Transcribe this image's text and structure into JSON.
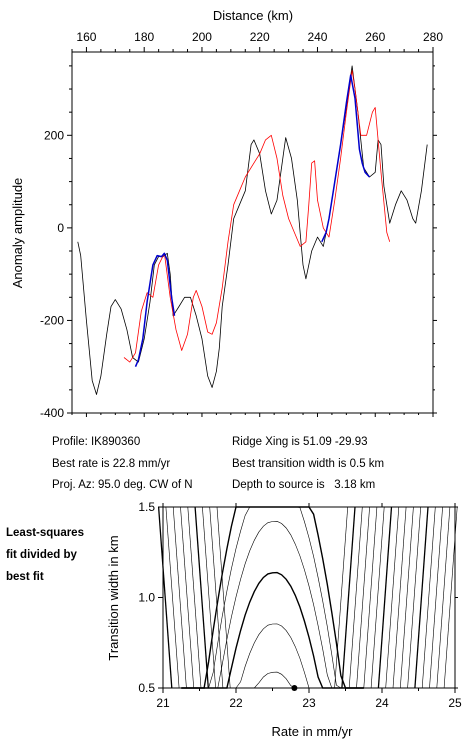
{
  "info": {
    "profile": "Profile: IK890360",
    "best_rate": "Best rate is 22.8 mm/yr",
    "proj_az": "Proj. Az: 95.0 deg. CW of N",
    "ridge_xing": "Ridge Xing is 51.09 -29.93",
    "best_width": "Best transition width is 0.5 km",
    "depth": "Depth to source is   3.18 km"
  },
  "side_label": [
    "Least-squares",
    "fit divided by",
    "best fit"
  ],
  "colors": {
    "observed": "#000000",
    "model": "#ff0000",
    "fit_window": "#0000cc"
  },
  "chart_data": [
    {
      "type": "line",
      "xlabel": "Distance (km)",
      "ylabel": "Anomaly amplitude",
      "xlim": [
        155,
        280
      ],
      "ylim": [
        -400,
        380
      ],
      "xticks": [
        160,
        180,
        200,
        220,
        240,
        260,
        280
      ],
      "yticks": [
        -400,
        -200,
        0,
        200
      ],
      "x_axis_position": "top",
      "series": [
        {
          "color": "black",
          "points": [
            [
              157,
              -30
            ],
            [
              158,
              -60
            ],
            [
              160,
              -200
            ],
            [
              162,
              -330
            ],
            [
              163.5,
              -360
            ],
            [
              165,
              -320
            ],
            [
              167,
              -230
            ],
            [
              168.5,
              -170
            ],
            [
              170,
              -155
            ],
            [
              172,
              -175
            ],
            [
              174,
              -220
            ],
            [
              176,
              -280
            ],
            [
              178,
              -290
            ],
            [
              180,
              -240
            ],
            [
              182,
              -160
            ],
            [
              183.5,
              -80
            ],
            [
              185,
              -62
            ],
            [
              186.5,
              -62
            ],
            [
              188,
              -55
            ],
            [
              189,
              -100
            ],
            [
              190,
              -190
            ],
            [
              192,
              -170
            ],
            [
              194,
              -150
            ],
            [
              196,
              -150
            ],
            [
              198,
              -190
            ],
            [
              200,
              -240
            ],
            [
              202,
              -320
            ],
            [
              203.5,
              -345
            ],
            [
              205,
              -310
            ],
            [
              206,
              -260
            ],
            [
              207,
              -170
            ],
            [
              209,
              -80
            ],
            [
              211,
              20
            ],
            [
              213,
              50
            ],
            [
              215,
              80
            ],
            [
              217,
              180
            ],
            [
              218,
              190
            ],
            [
              220,
              160
            ],
            [
              222,
              80
            ],
            [
              224,
              30
            ],
            [
              226,
              60
            ],
            [
              228,
              150
            ],
            [
              229,
              195
            ],
            [
              231,
              150
            ],
            [
              233,
              60
            ],
            [
              235,
              -80
            ],
            [
              236,
              -110
            ],
            [
              238,
              -50
            ],
            [
              240,
              -20
            ],
            [
              242,
              -40
            ],
            [
              244,
              20
            ],
            [
              246,
              100
            ],
            [
              248,
              180
            ],
            [
              250,
              260
            ],
            [
              252,
              350
            ],
            [
              254,
              250
            ],
            [
              256,
              130
            ],
            [
              258,
              110
            ],
            [
              260,
              120
            ],
            [
              261,
              190
            ],
            [
              262,
              180
            ],
            [
              263,
              90
            ],
            [
              265,
              10
            ],
            [
              267,
              50
            ],
            [
              269,
              80
            ],
            [
              271,
              60
            ],
            [
              273,
              20
            ],
            [
              274,
              10
            ],
            [
              276,
              80
            ],
            [
              278,
              180
            ]
          ]
        },
        {
          "color": "red",
          "points": [
            [
              173,
              -280
            ],
            [
              175,
              -290
            ],
            [
              177,
              -270
            ],
            [
              179,
              -180
            ],
            [
              181,
              -140
            ],
            [
              183,
              -150
            ],
            [
              185,
              -80
            ],
            [
              187,
              -55
            ],
            [
              189,
              -150
            ],
            [
              191,
              -220
            ],
            [
              193,
              -265
            ],
            [
              195,
              -230
            ],
            [
              197,
              -150
            ],
            [
              198,
              -135
            ],
            [
              200,
              -170
            ],
            [
              202,
              -225
            ],
            [
              203.5,
              -230
            ],
            [
              205,
              -205
            ],
            [
              207,
              -130
            ],
            [
              209,
              -30
            ],
            [
              211,
              50
            ],
            [
              213,
              80
            ],
            [
              215,
              110
            ],
            [
              218,
              140
            ],
            [
              220,
              160
            ],
            [
              222,
              190
            ],
            [
              224,
              200
            ],
            [
              226,
              150
            ],
            [
              228,
              70
            ],
            [
              230,
              20
            ],
            [
              232,
              -10
            ],
            [
              234,
              -40
            ],
            [
              236,
              -30
            ],
            [
              237,
              50
            ],
            [
              238,
              140
            ],
            [
              239,
              145
            ],
            [
              240,
              60
            ],
            [
              242,
              0
            ],
            [
              244,
              -20
            ],
            [
              246,
              60
            ],
            [
              248,
              150
            ],
            [
              250,
              250
            ],
            [
              252,
              340
            ],
            [
              253,
              300
            ],
            [
              255,
              200
            ],
            [
              257,
              200
            ],
            [
              259,
              250
            ],
            [
              260,
              260
            ],
            [
              262,
              120
            ],
            [
              264,
              -10
            ],
            [
              265,
              -30
            ]
          ]
        },
        {
          "color": "blue",
          "points": [
            [
              177,
              -300
            ],
            [
              178,
              -285
            ],
            [
              179.5,
              -240
            ],
            [
              181,
              -160
            ],
            [
              183,
              -80
            ],
            [
              184.5,
              -60
            ],
            [
              186,
              -62
            ],
            [
              187,
              -55
            ],
            [
              188,
              -70
            ],
            [
              189.5,
              -150
            ],
            [
              190.5,
              -190
            ]
          ]
        },
        {
          "color": "blue",
          "points": [
            [
              241.5,
              -30
            ],
            [
              243,
              -10
            ],
            [
              244,
              20
            ],
            [
              246,
              100
            ],
            [
              248,
              180
            ],
            [
              250,
              270
            ],
            [
              251.5,
              330
            ],
            [
              253,
              280
            ],
            [
              254.5,
              170
            ],
            [
              255.5,
              140
            ],
            [
              256.5,
              120
            ],
            [
              258,
              110
            ]
          ]
        }
      ]
    },
    {
      "type": "contour",
      "xlabel": "Rate in mm/yr",
      "ylabel": "Transition width in km",
      "xlim": [
        21,
        25
      ],
      "ylim": [
        0.5,
        1.5
      ],
      "xticks": [
        21,
        22,
        23,
        24,
        25
      ],
      "yticks": [
        0.5,
        1.0,
        1.5
      ],
      "best_fit": {
        "rate": 22.8,
        "width": 0.5
      }
    }
  ]
}
